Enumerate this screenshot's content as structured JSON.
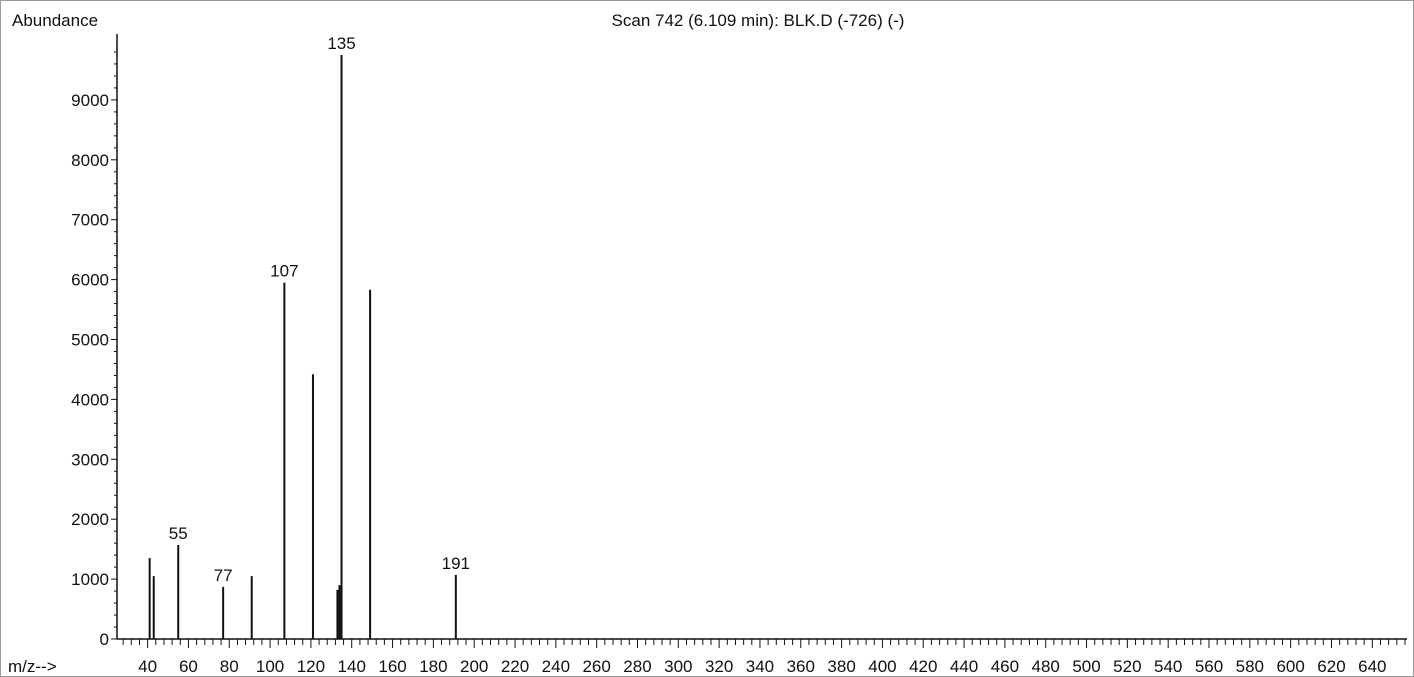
{
  "chart_data": {
    "type": "bar",
    "title": "Scan 742 (6.109 min): BLK.D (-726) (-)",
    "ylabel": "Abundance",
    "xlabel": "m/z-->",
    "xlim": [
      25,
      657
    ],
    "ylim": [
      0,
      10000
    ],
    "x_ticks": [
      40,
      60,
      80,
      100,
      120,
      140,
      160,
      180,
      200,
      220,
      240,
      260,
      280,
      300,
      320,
      340,
      360,
      380,
      400,
      420,
      440,
      460,
      480,
      500,
      520,
      540,
      560,
      580,
      600,
      620,
      640
    ],
    "y_ticks": [
      0,
      1000,
      2000,
      3000,
      4000,
      5000,
      6000,
      7000,
      8000,
      9000
    ],
    "grid": false,
    "peaks": [
      {
        "mz": 41,
        "abundance": 1350
      },
      {
        "mz": 43,
        "abundance": 1050
      },
      {
        "mz": 55,
        "abundance": 1570,
        "label": "55"
      },
      {
        "mz": 77,
        "abundance": 870,
        "label": "77"
      },
      {
        "mz": 91,
        "abundance": 1050
      },
      {
        "mz": 107,
        "abundance": 5950,
        "label": "107"
      },
      {
        "mz": 121,
        "abundance": 4420
      },
      {
        "mz": 133,
        "abundance": 820
      },
      {
        "mz": 134,
        "abundance": 900
      },
      {
        "mz": 135,
        "abundance": 9750,
        "label": "135"
      },
      {
        "mz": 149,
        "abundance": 5830
      },
      {
        "mz": 191,
        "abundance": 1070,
        "label": "191"
      }
    ]
  }
}
